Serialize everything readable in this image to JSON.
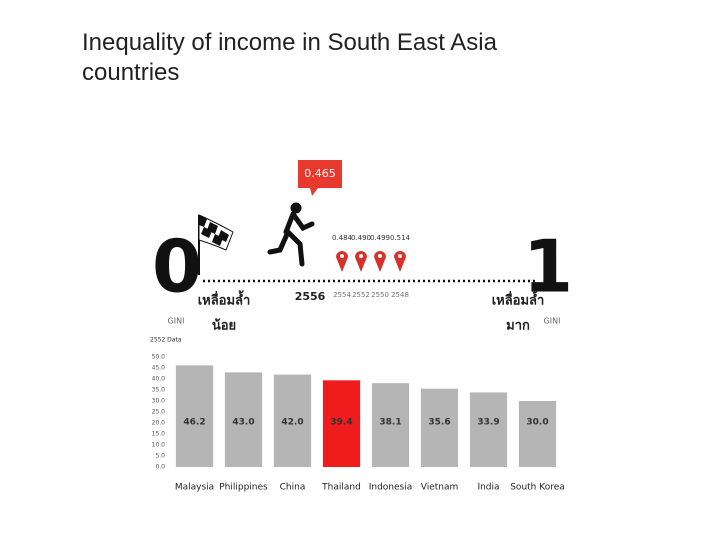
{
  "title": [
    "Inequality of income in South East Asia",
    "countries"
  ],
  "gini_scale": {
    "left": "0",
    "right": "1",
    "left_gini": "GINI",
    "right_gini": "GINI",
    "left_label": [
      "เหลื่อมล้ำ",
      "น้อย"
    ],
    "right_label": [
      "เหลื่อมล้ำ",
      "มาก"
    ],
    "current": {
      "value": "0.465",
      "year": "2556"
    },
    "history": [
      {
        "value": "0.484",
        "year": "2554"
      },
      {
        "value": "0.490",
        "year": "2552"
      },
      {
        "value": "0.499",
        "year": "2550"
      },
      {
        "value": "0.514",
        "year": "2548"
      }
    ]
  },
  "chart_data": {
    "type": "bar",
    "subtitle": "2552 Data",
    "categories": [
      "Malaysia",
      "Philippines",
      "China",
      "Thailand",
      "Indonesia",
      "Vietnam",
      "India",
      "South Korea"
    ],
    "values": [
      46.2,
      43,
      42,
      39.4,
      38.1,
      35.6,
      33.9,
      30
    ],
    "value_labels": [
      "46.2",
      "43.0",
      "42.0",
      "39.4",
      "38.1",
      "35.6",
      "33.9",
      "30.0"
    ],
    "colors": [
      "#b5b5b5",
      "#b5b5b5",
      "#b5b5b5",
      "#ee1c1c",
      "#b5b5b5",
      "#b5b5b5",
      "#b5b5b5",
      "#b5b5b5"
    ],
    "ylim": [
      0,
      50
    ],
    "yticks": [
      {
        "value": 0,
        "label": "0.0"
      },
      {
        "value": 5,
        "label": "5.0"
      },
      {
        "value": 10,
        "label": "10.0"
      },
      {
        "value": 15,
        "label": "15.0"
      },
      {
        "value": 20,
        "label": "20.0"
      },
      {
        "value": 25,
        "label": "25.0"
      },
      {
        "value": 30,
        "label": "30.0"
      },
      {
        "value": 35,
        "label": "35.0"
      },
      {
        "value": 40,
        "label": "40.0"
      },
      {
        "value": 45,
        "label": "45.0"
      },
      {
        "value": 50,
        "label": "50.0"
      }
    ],
    "grid": false
  }
}
